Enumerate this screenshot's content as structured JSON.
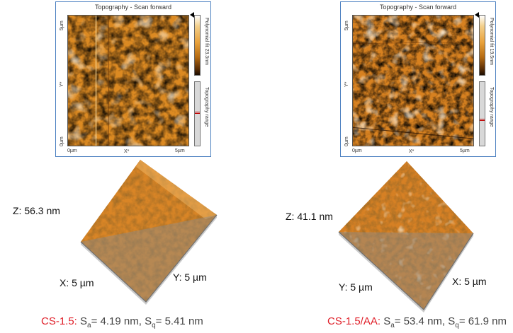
{
  "panels": [
    {
      "title": "Topography - Scan forward",
      "y_top": "5µm",
      "y_mid": "Y*",
      "y_bottom": "0µm",
      "x_left": "0µm",
      "x_mid": "X*",
      "x_right": "5µm",
      "colorbar_label": "Polynomial fit 23.3nm",
      "range_label": "Topography range",
      "z_label": "Z: 56.3 nm",
      "x_label": "X: 5 µm",
      "y_label": "Y: 5 µm",
      "caption": {
        "sample": "CS-1.5:",
        "sa_sym": "S",
        "sa_sub": "a",
        "sa_val": "= 4.19 nm,",
        "sq_sym": "S",
        "sq_sub": "q",
        "sq_val": "= 5.41 nm"
      }
    },
    {
      "title": "Topography - Scan forward",
      "y_top": "5µm",
      "y_mid": "Y*",
      "y_bottom": "0µm",
      "x_left": "0µm",
      "x_mid": "X*",
      "x_right": "5µm",
      "colorbar_label": "Polynomial fit 19.5nm",
      "range_label": "Topography range",
      "z_label": "Z: 41.1 nm",
      "x_label": "X: 5 µm",
      "y_label": "Y: 5 µm",
      "caption": {
        "sample": "CS-1.5/AA:",
        "sa_sym": "S",
        "sa_sub": "a",
        "sa_val": "= 53.4 nm,",
        "sq_sym": "S",
        "sq_sub": "q",
        "sq_val": "= 61.9 nm"
      }
    }
  ],
  "colors": {
    "accent_red": "#e0202a",
    "panel_border": "#4a7fc0",
    "afm_orange": "#d9821f",
    "afm_dark": "#3a1a02"
  }
}
